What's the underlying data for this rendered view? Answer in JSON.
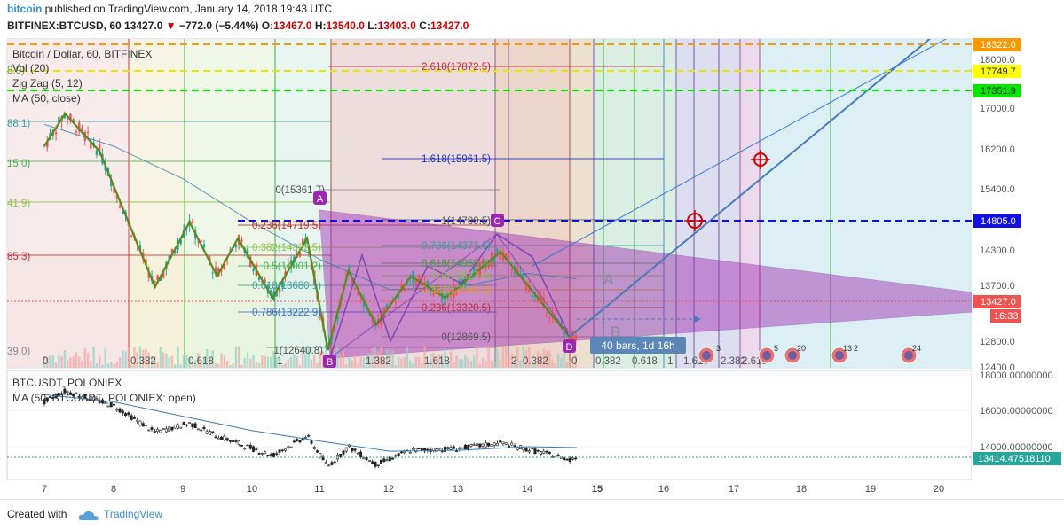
{
  "header": {
    "site": "bitcoin",
    "published": "published on TradingView.com, January 14, 2018 19:43 UTC",
    "symbol": "BITFINEX:BTCUSD, 60",
    "last": "13427.0",
    "change": "−772.0 (−5.44%)",
    "o_label": "O:",
    "o": "13467.0",
    "h_label": "H:",
    "h": "13540.0",
    "l_label": "L:",
    "l": "13403.0",
    "c_label": "C:",
    "c": "13427.0"
  },
  "legend": {
    "title": "Bitcoin / Dollar, 60, BITFINEX",
    "vol": "Vol (20)",
    "zigzag": "Zig Zag (5, 12)",
    "ma": "MA (50, close)"
  },
  "lower_legend": {
    "symbol": "BTCUSDT, POLONIEX",
    "ma": "MA (50, BTCUSDT_POLONIEX: open)"
  },
  "footer": {
    "created": "Created with",
    "brand": "TradingView"
  },
  "colors": {
    "orange_line": "#ff9800",
    "yellow_line": "#e6e600",
    "green_line": "#00e600",
    "blue_line": "#1010e0",
    "triangle": "#9c27b0",
    "zigzag": "#5a8a1e",
    "price_tag": "#ef5350",
    "accent": "#3a8fd6"
  },
  "chart_data": [
    {
      "type": "line",
      "title": "Bitcoin / Dollar, 60, BITFINEX",
      "xlabel": "",
      "ylabel": "",
      "x_ticks": [
        "7",
        "8",
        "9",
        "10",
        "11",
        "12",
        "13",
        "14",
        "15",
        "16",
        "17",
        "18",
        "19",
        "20"
      ],
      "y_ticks": [
        "18000.0",
        "17000.0",
        "16200.0",
        "15400.0",
        "14300.0",
        "13700.0",
        "12800.0",
        "12400.0"
      ],
      "ylim": [
        12400,
        18400
      ],
      "series": [
        {
          "type": "zigzag",
          "points": [
            [
              7.0,
              16400
            ],
            [
              7.3,
              17000
            ],
            [
              7.8,
              16300
            ],
            [
              8.6,
              13800
            ],
            [
              9.1,
              15000
            ],
            [
              9.5,
              14000
            ],
            [
              9.8,
              14700
            ],
            [
              10.3,
              13600
            ],
            [
              10.8,
              14700
            ],
            [
              11.1,
              12640
            ],
            [
              11.4,
              14100
            ],
            [
              11.8,
              13100
            ],
            [
              12.3,
              14000
            ],
            [
              12.8,
              13600
            ],
            [
              13.6,
              14450
            ],
            [
              14.6,
              12870
            ]
          ]
        },
        {
          "type": "moving_average",
          "points": [
            [
              7.0,
              16800
            ],
            [
              8.0,
              16400
            ],
            [
              9.0,
              15800
            ],
            [
              10.0,
              15000
            ],
            [
              11.0,
              14300
            ],
            [
              12.0,
              13750
            ],
            [
              13.0,
              13800
            ],
            [
              14.0,
              14050
            ],
            [
              14.7,
              13950
            ]
          ]
        }
      ],
      "horizontal_lines": [
        {
          "label": "18322.0",
          "value": 18322.0,
          "color": "#ff9800"
        },
        {
          "label": "17749.7",
          "value": 17749.7,
          "color": "#e6e600"
        },
        {
          "label": "17351.9",
          "value": 17351.9,
          "color": "#00e600"
        },
        {
          "label": "14805.0",
          "value": 14805.0,
          "color": "#1010e0"
        }
      ],
      "price_labels": [
        {
          "label": "13427.0",
          "color": "#ef5350"
        },
        {
          "label": "16:33",
          "color": "#ef5350"
        }
      ],
      "fib_left_labels": [
        "8.9)",
        "88.1)",
        "15.0)",
        "41.9)",
        "85.3)",
        "39.0)"
      ],
      "fib_retracement_labels": [
        "0(15361.7)",
        "0.236(14719.5)",
        "0.382(14322.5)",
        "0.5(14001.2)",
        "0.618(13680.1)",
        "0.786(13222.9)",
        "1(12640.8)"
      ],
      "fib_extension_labels": [
        "2.618(17872.5)",
        "1.618(15961.5)",
        "1(14780.5)",
        "0.786(14371.6)",
        "0.618(14050.6)",
        "0.5(13827.0)",
        "0.382(13590.2)",
        "0.236(13320.5)",
        "0(12869.5)"
      ],
      "fib_time_labels": [
        "0",
        "0.382",
        "0.618",
        "1",
        "1.382",
        "1.618",
        "2",
        "0.382",
        "0",
        "0.382",
        "0.618",
        "1",
        "1.618",
        "2.382",
        "2.618"
      ],
      "pattern_points": [
        "A",
        "B",
        "C",
        "D"
      ],
      "annotations": [
        "A",
        "B",
        "40 bars, 1d 16h"
      ],
      "event_counts": [
        "3",
        "5",
        "20",
        "13",
        "2",
        "24"
      ]
    },
    {
      "type": "line",
      "title": "BTCUSDT, POLONIEX",
      "y_ticks": [
        "18000.00000000",
        "16000.00000000",
        "14000.00000000"
      ],
      "ylim": [
        12400,
        18400
      ],
      "series": [
        {
          "name": "MA (50, BTCUSDT_POLONIEX: open)",
          "points": [
            [
              7.0,
              16900
            ],
            [
              8.0,
              16500
            ],
            [
              9.0,
              15700
            ],
            [
              10.0,
              14900
            ],
            [
              11.0,
              14300
            ],
            [
              12.0,
              13750
            ],
            [
              13.0,
              13800
            ],
            [
              14.0,
              14000
            ],
            [
              14.7,
              13950
            ]
          ]
        },
        {
          "type": "price",
          "points": [
            [
              7.0,
              16500
            ],
            [
              7.3,
              17100
            ],
            [
              8.0,
              16300
            ],
            [
              8.6,
              14800
            ],
            [
              9.1,
              15300
            ],
            [
              9.5,
              14600
            ],
            [
              10.3,
              13500
            ],
            [
              10.8,
              14600
            ],
            [
              11.1,
              12900
            ],
            [
              11.4,
              14000
            ],
            [
              11.8,
              13000
            ],
            [
              12.3,
              13800
            ],
            [
              13.0,
              13900
            ],
            [
              13.6,
              14200
            ],
            [
              14.6,
              13300
            ],
            [
              14.7,
              13414
            ]
          ]
        }
      ],
      "price_labels": [
        {
          "label": "13414.47518110",
          "color": "#26a69a"
        }
      ]
    }
  ]
}
